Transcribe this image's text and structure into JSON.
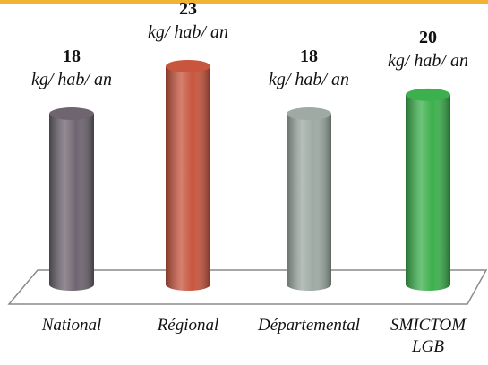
{
  "chart_data": {
    "type": "bar",
    "unit": "kg/ hab/ an",
    "categories": [
      "National",
      "Régional",
      "Départemental",
      "SMICTOM LGB"
    ],
    "values": [
      18,
      23,
      18,
      20
    ],
    "colors": [
      "#6e6570",
      "#c8553d",
      "#9eaaa3",
      "#3cb04c"
    ]
  }
}
